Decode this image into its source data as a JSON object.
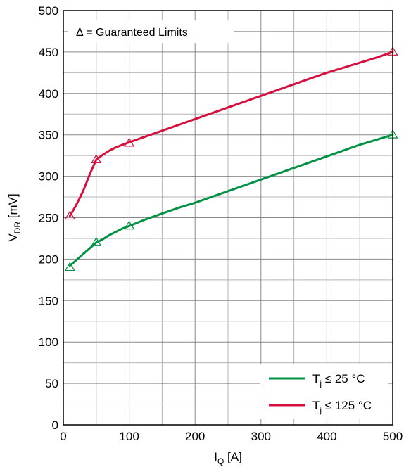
{
  "chart_data": {
    "type": "line",
    "xlabel": {
      "main": "I",
      "sub": "Q",
      "unit": " [A]"
    },
    "ylabel": {
      "main": "V",
      "sub": "DR",
      "unit": " [mV]"
    },
    "xlim": [
      0,
      500
    ],
    "ylim": [
      0,
      500
    ],
    "x_major_ticks": [
      0,
      100,
      200,
      300,
      400,
      500
    ],
    "y_major_ticks": [
      0,
      50,
      100,
      150,
      200,
      250,
      300,
      350,
      400,
      450,
      500
    ],
    "x_minor_step": 50,
    "y_minor_step": 25,
    "grid": true,
    "annotation": "Δ = Guaranteed Limits",
    "legend_position": "bottom-right",
    "series": [
      {
        "name": {
          "main": "T",
          "sub": "j",
          "rest": " ≤ 25 °C"
        },
        "color": "#009145",
        "x": [
          10,
          20,
          30,
          40,
          50,
          60,
          70,
          80,
          90,
          100,
          125,
          150,
          175,
          200,
          225,
          250,
          275,
          300,
          325,
          350,
          375,
          400,
          425,
          450,
          475,
          500
        ],
        "y": [
          192,
          199,
          206,
          213,
          220,
          224,
          229,
          233,
          237,
          240,
          248,
          255,
          262,
          268,
          275,
          282,
          289,
          296,
          303,
          310,
          317,
          324,
          331,
          338,
          344,
          350
        ],
        "limits": [
          [
            10,
            190
          ],
          [
            50,
            220
          ],
          [
            100,
            240
          ],
          [
            500,
            350
          ]
        ]
      },
      {
        "name": {
          "main": "T",
          "sub": "j",
          "rest": " ≤ 125 °C"
        },
        "color": "#d4103e",
        "x": [
          10,
          20,
          30,
          40,
          50,
          60,
          70,
          80,
          90,
          100,
          125,
          150,
          175,
          200,
          225,
          250,
          275,
          300,
          325,
          350,
          375,
          400,
          425,
          450,
          475,
          500
        ],
        "y": [
          252,
          266,
          282,
          302,
          320,
          326,
          331,
          335,
          338,
          341,
          348,
          355,
          362,
          369,
          376,
          383,
          390,
          397,
          404,
          411,
          418,
          425,
          431,
          437,
          443,
          450
        ],
        "limits": [
          [
            10,
            252
          ],
          [
            50,
            320
          ],
          [
            100,
            340
          ],
          [
            500,
            450
          ]
        ]
      }
    ]
  }
}
